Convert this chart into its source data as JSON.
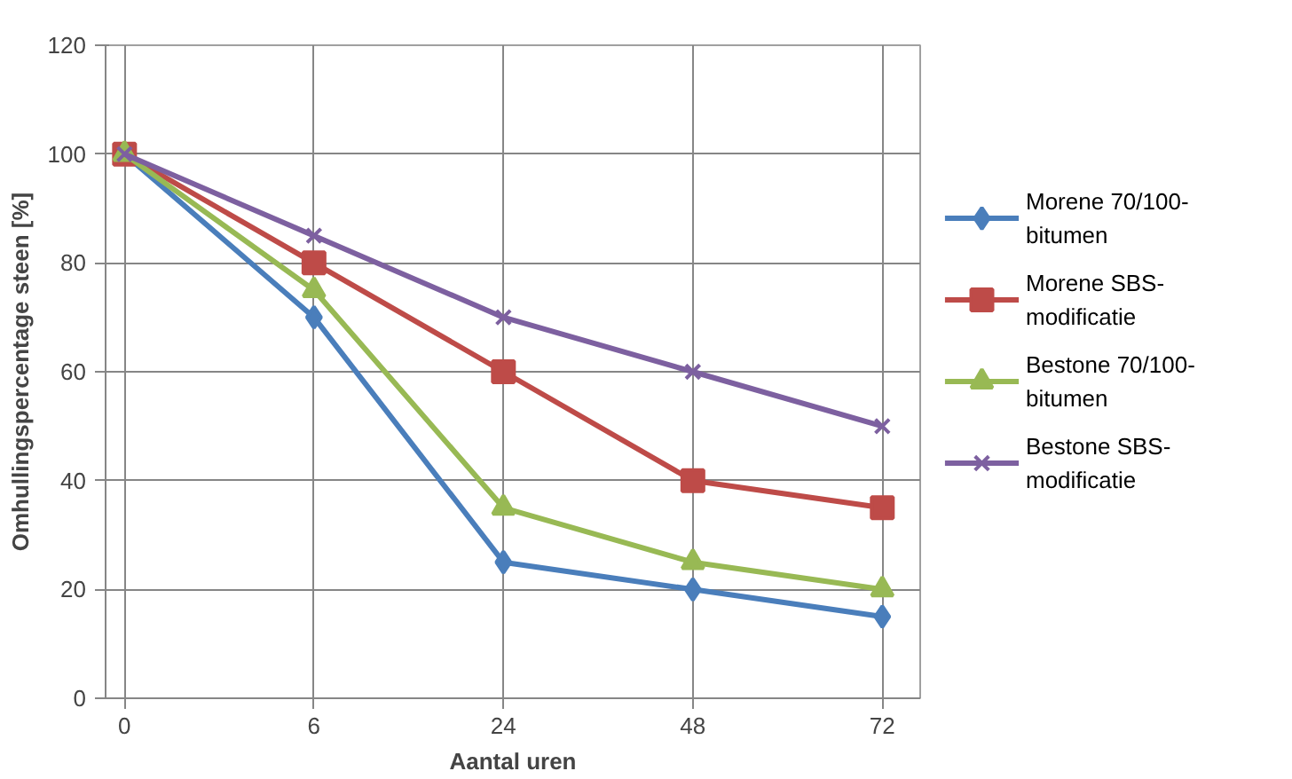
{
  "chart_data": {
    "type": "line",
    "xlabel": "Aantal uren",
    "ylabel": "Omhullingspercentage steen [%]",
    "categories": [
      "0",
      "6",
      "24",
      "48",
      "72"
    ],
    "ylim": [
      0,
      120
    ],
    "yticks": [
      0,
      20,
      40,
      60,
      80,
      100,
      120
    ],
    "grid": true,
    "legend": "right",
    "series": [
      {
        "name": "Morene 70/100-\nbitumen",
        "color": "#4a7ebb",
        "marker": "diamond",
        "values": [
          100,
          70,
          25,
          20,
          15
        ]
      },
      {
        "name": "Morene SBS-\nmodificatie",
        "color": "#be4b48",
        "marker": "square",
        "values": [
          100,
          80,
          60,
          40,
          35
        ]
      },
      {
        "name": "Bestone 70/100-\nbitumen",
        "color": "#98b954",
        "marker": "triangle",
        "values": [
          100,
          75,
          35,
          25,
          20
        ]
      },
      {
        "name": "Bestone SBS-\nmodificatie",
        "color": "#7d60a0",
        "marker": "cross",
        "values": [
          100,
          85,
          70,
          60,
          50
        ]
      }
    ]
  }
}
